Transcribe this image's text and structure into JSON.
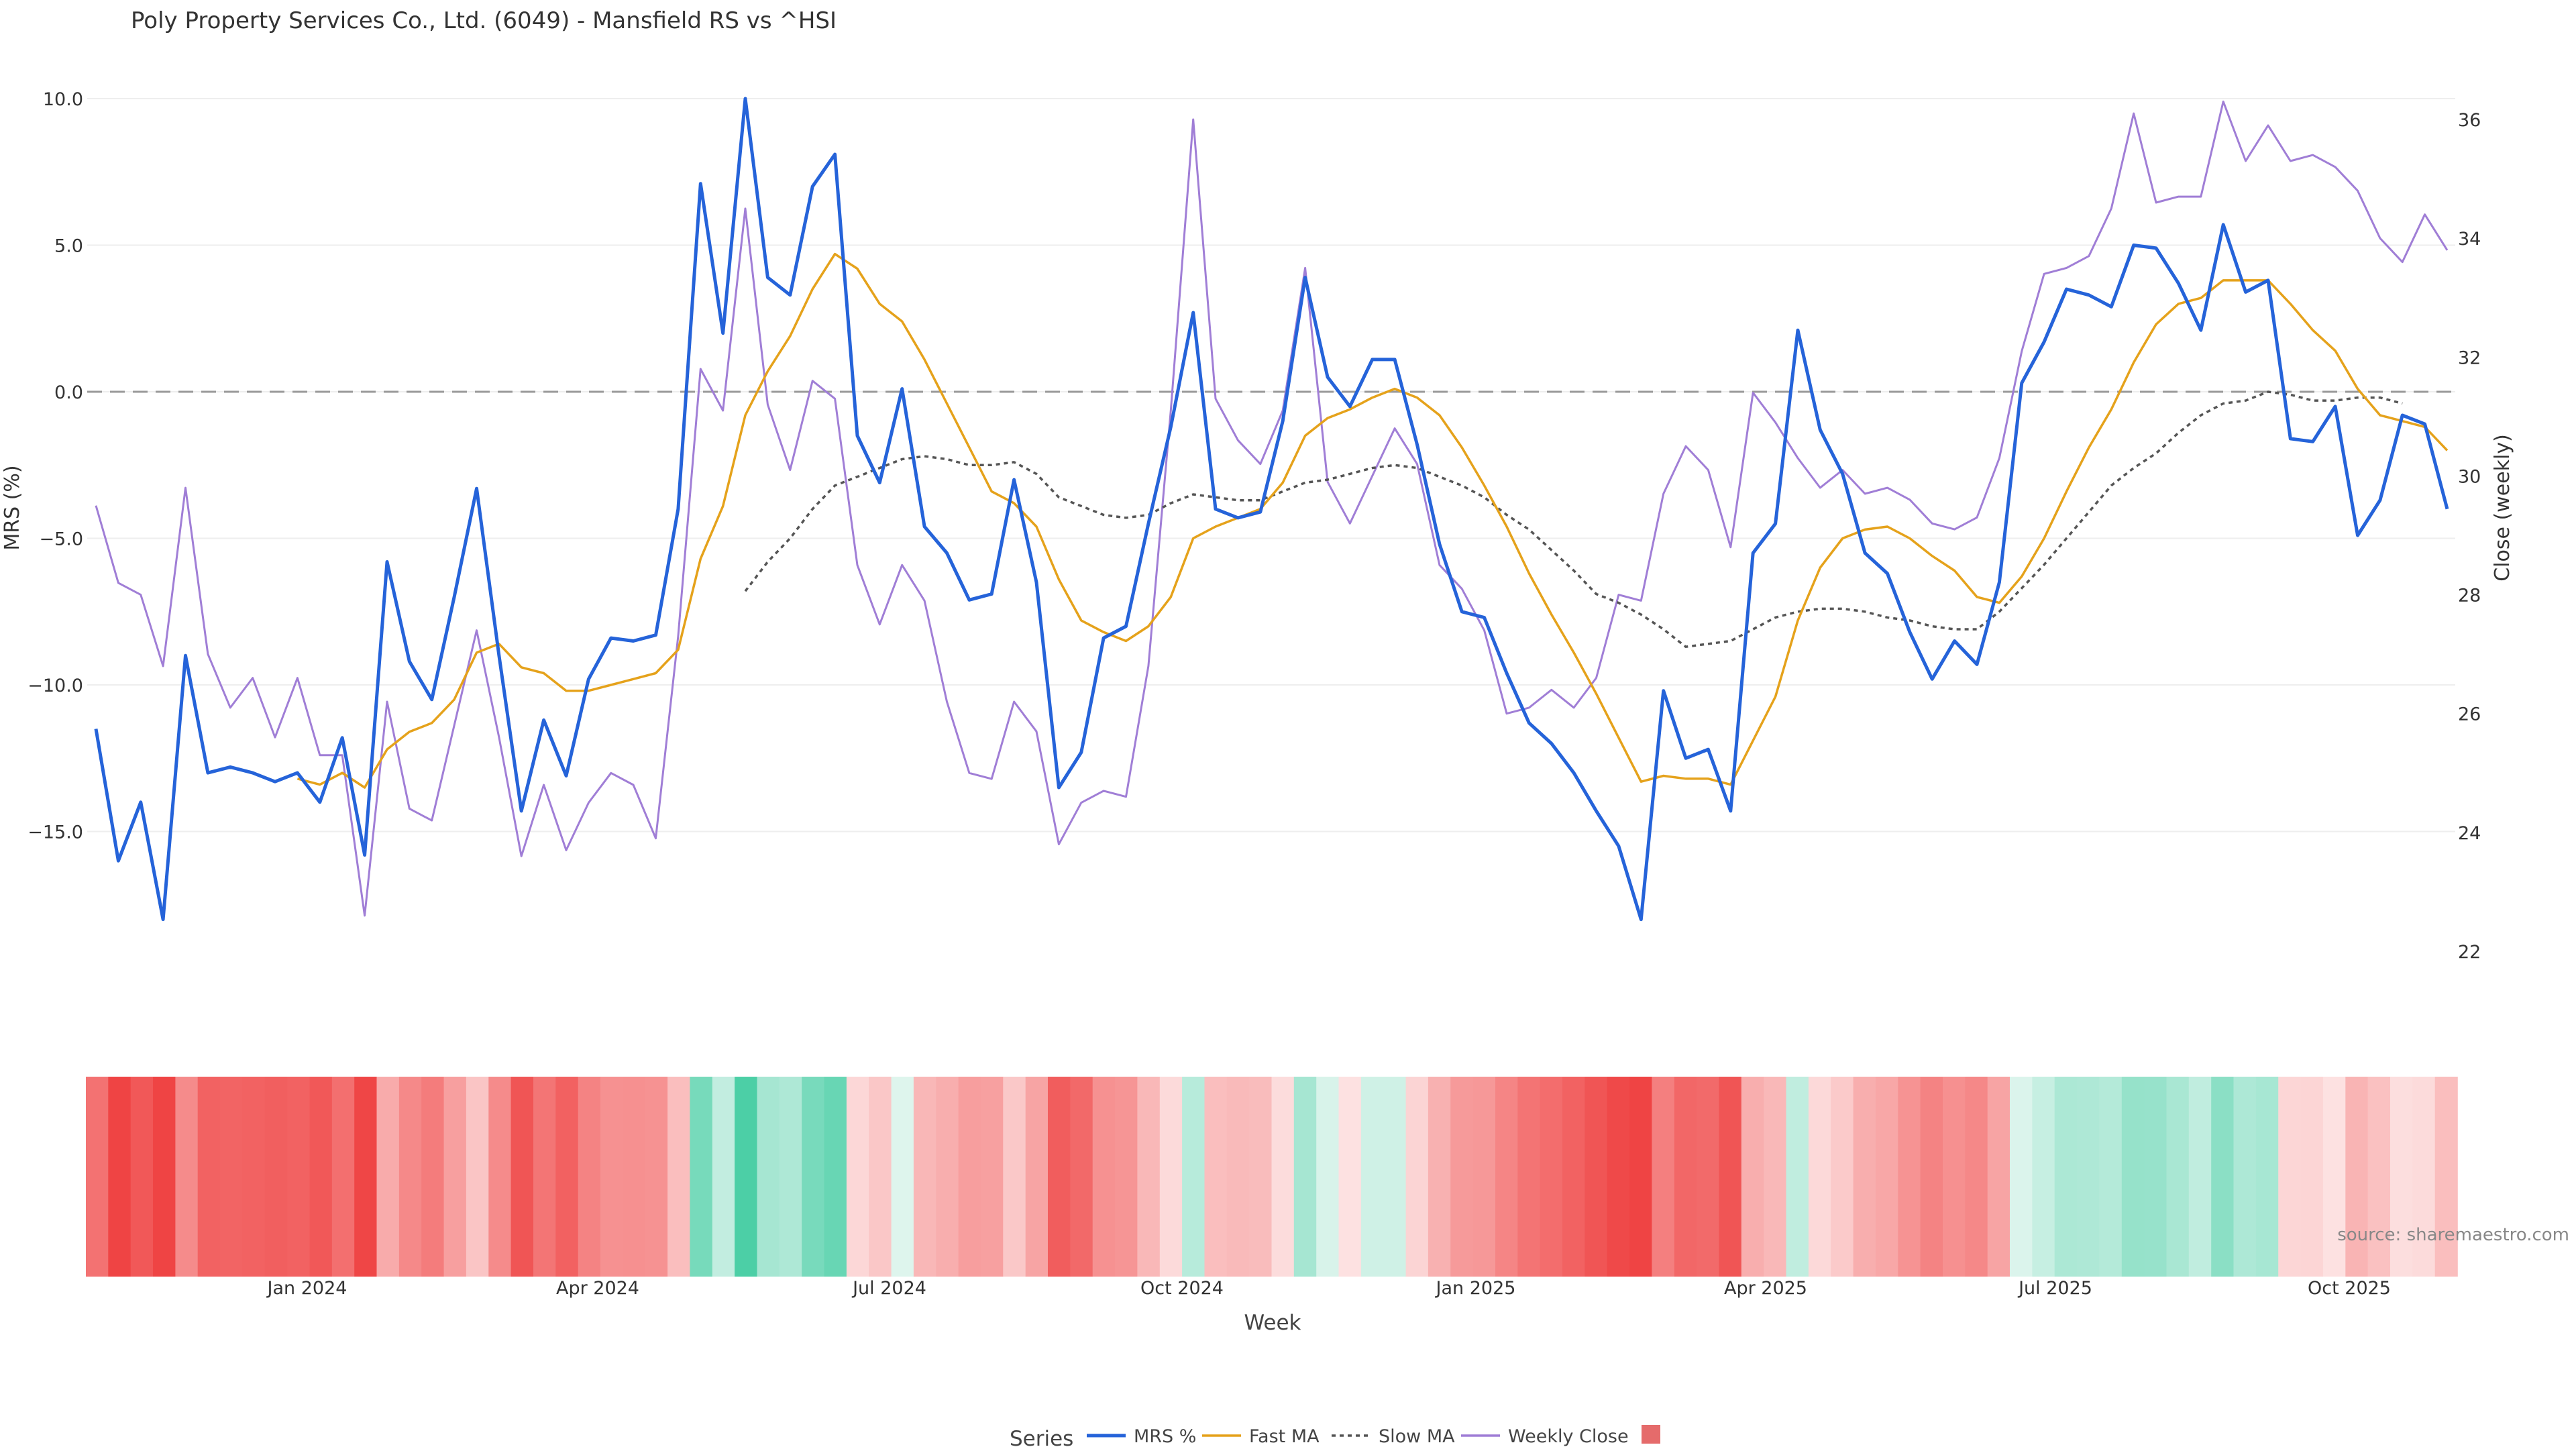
{
  "chart_data": {
    "type": "line",
    "title": "Poly Property Services Co., Ltd. (6049) - Mansfield RS vs ^HSI",
    "xlabel": "Week",
    "ylabel_left": "MRS (%)",
    "ylabel_right": "Close (weekly)",
    "x_ticks": [
      "Jan 2024",
      "Apr 2024",
      "Jul 2024",
      "Oct 2024",
      "Jan 2025",
      "Apr 2025",
      "Jul 2025",
      "Oct 2025"
    ],
    "y_left_ticks": [
      "10.0",
      "5.0",
      "0.0",
      "−5.0",
      "−10.0",
      "−15.0"
    ],
    "y_left_range": [
      -20,
      10
    ],
    "y_right_ticks": [
      "36",
      "34",
      "32",
      "30",
      "28",
      "26",
      "24",
      "22"
    ],
    "y_right_range": [
      21.5,
      36.5
    ],
    "zero_line": 0,
    "series": [
      {
        "name": "MRS %",
        "axis": "left",
        "color": "#2563d9",
        "dash": "solid",
        "values": [
          -11.5,
          -16,
          -14,
          -18,
          -9,
          -13,
          -12.8,
          -13,
          -13.3,
          -13,
          -14,
          -11.8,
          -15.8,
          -5.8,
          -9.2,
          -10.5,
          -7,
          -3.3,
          -9,
          -14.3,
          -11.2,
          -13.1,
          -9.8,
          -8.4,
          -8.5,
          -8.3,
          -4,
          7.1,
          2,
          10,
          3.9,
          3.3,
          7,
          8.1,
          -1.5,
          -3.1,
          0.1,
          -4.6,
          -5.5,
          -7.1,
          -6.9,
          -3,
          -6.5,
          -13.5,
          -12.3,
          -8.4,
          -8,
          -4.5,
          -1.2,
          2.7,
          -4,
          -4.3,
          -4.1,
          -1,
          3.9,
          0.5,
          -0.5,
          1.1,
          1.1,
          -1.8,
          -5.2,
          -7.5,
          -7.7,
          -9.6,
          -11.3,
          -12,
          -13,
          -14.3,
          -15.5,
          -18,
          -10.2,
          -12.5,
          -12.2,
          -14.3,
          -5.5,
          -4.5,
          2.1,
          -1.3,
          -2.8,
          -5.5,
          -6.2,
          -8.2,
          -9.8,
          -8.5,
          -9.3,
          -6.5,
          0.3,
          1.7,
          3.5,
          3.3,
          2.9,
          5,
          4.9,
          3.7,
          2.1,
          5.7,
          3.4,
          3.8,
          -1.6,
          -1.7,
          -0.5,
          -4.9,
          -3.7,
          -0.8,
          -1.1,
          -4
        ]
      },
      {
        "name": "Fast MA",
        "axis": "left",
        "color": "#e5a21b",
        "dash": "solid",
        "values": [
          null,
          null,
          null,
          null,
          null,
          null,
          null,
          null,
          null,
          -13.2,
          -13.4,
          -13,
          -13.5,
          -12.2,
          -11.6,
          -11.3,
          -10.5,
          -8.9,
          -8.6,
          -9.4,
          -9.6,
          -10.2,
          -10.2,
          -10,
          -9.8,
          -9.6,
          -8.8,
          -5.7,
          -3.9,
          -0.8,
          0.7,
          1.9,
          3.5,
          4.7,
          4.2,
          3,
          2.4,
          1.1,
          -0.4,
          -1.9,
          -3.4,
          -3.8,
          -4.6,
          -6.4,
          -7.8,
          -8.2,
          -8.5,
          -8,
          -7,
          -5,
          -4.6,
          -4.3,
          -4,
          -3.1,
          -1.5,
          -0.9,
          -0.6,
          -0.2,
          0.1,
          -0.2,
          -0.8,
          -1.9,
          -3.2,
          -4.6,
          -6.2,
          -7.6,
          -8.9,
          -10.3,
          -11.8,
          -13.3,
          -13.1,
          -13.2,
          -13.2,
          -13.4,
          -11.9,
          -10.4,
          -7.8,
          -6,
          -5,
          -4.7,
          -4.6,
          -5,
          -5.6,
          -6.1,
          -7,
          -7.2,
          -6.3,
          -5,
          -3.4,
          -1.9,
          -0.6,
          1,
          2.3,
          3,
          3.2,
          3.8,
          3.8,
          3.8,
          3,
          2.1,
          1.4,
          0.1,
          -0.8,
          -1,
          -1.2,
          -2
        ]
      },
      {
        "name": "Slow MA",
        "axis": "left",
        "color": "#555555",
        "dash": "dotted",
        "values": [
          null,
          null,
          null,
          null,
          null,
          null,
          null,
          null,
          null,
          null,
          null,
          null,
          null,
          null,
          null,
          null,
          null,
          null,
          null,
          null,
          null,
          null,
          null,
          null,
          null,
          null,
          null,
          null,
          null,
          -6.8,
          -5.8,
          -5,
          -4,
          -3.2,
          -2.9,
          -2.6,
          -2.3,
          -2.2,
          -2.3,
          -2.5,
          -2.5,
          -2.4,
          -2.8,
          -3.6,
          -3.9,
          -4.2,
          -4.3,
          -4.2,
          -3.8,
          -3.5,
          -3.6,
          -3.7,
          -3.7,
          -3.4,
          -3.1,
          -3,
          -2.8,
          -2.6,
          -2.5,
          -2.6,
          -2.9,
          -3.2,
          -3.6,
          -4.2,
          -4.7,
          -5.4,
          -6.1,
          -6.9,
          -7.2,
          -7.6,
          -8.1,
          -8.7,
          -8.6,
          -8.5,
          -8.1,
          -7.7,
          -7.5,
          -7.4,
          -7.4,
          -7.5,
          -7.7,
          -7.8,
          -8,
          -8.1,
          -8.1,
          -7.5,
          -6.7,
          -5.9,
          -5,
          -4.1,
          -3.2,
          -2.6,
          -2.1,
          -1.4,
          -0.8,
          -0.4,
          -0.3,
          0,
          -0.1,
          -0.3,
          -0.3,
          -0.2,
          -0.2,
          -0.4
        ]
      },
      {
        "name": "Weekly Close",
        "axis": "right",
        "color": "#a07ed6",
        "dash": "solid",
        "values": [
          29.5,
          28.2,
          28,
          26.8,
          29.8,
          27,
          26.1,
          26.6,
          25.6,
          26.6,
          25.3,
          25.3,
          22.6,
          26.2,
          24.4,
          24.2,
          25.8,
          27.4,
          25.6,
          23.6,
          24.8,
          23.7,
          24.5,
          25,
          24.8,
          23.9,
          27.3,
          31.8,
          31.1,
          34.5,
          31.2,
          30.1,
          31.6,
          31.3,
          28.5,
          27.5,
          28.5,
          27.9,
          26.2,
          25,
          24.9,
          26.2,
          25.7,
          23.8,
          24.5,
          24.7,
          24.6,
          26.8,
          31.1,
          36,
          31.3,
          30.6,
          30.2,
          31.1,
          33.5,
          29.9,
          29.2,
          30,
          30.8,
          30.2,
          28.5,
          28.1,
          27.4,
          26,
          26.1,
          26.4,
          26.1,
          26.6,
          28,
          27.9,
          29.7,
          30.5,
          30.1,
          28.8,
          31.4,
          30.9,
          30.3,
          29.8,
          30.1,
          29.7,
          29.8,
          29.6,
          29.2,
          29.1,
          29.3,
          30.3,
          32.1,
          33.4,
          33.5,
          33.7,
          34.5,
          36.1,
          34.6,
          34.7,
          34.7,
          36.3,
          35.3,
          35.9,
          35.3,
          35.4,
          35.2,
          34.8,
          34,
          33.6,
          34.4,
          33.8
        ]
      }
    ],
    "heatmap_strip": {
      "description": "weekly MRS color band",
      "values": [
        -11.5,
        -16,
        -14,
        -18,
        -9,
        -13,
        -12.8,
        -13,
        -13.3,
        -13,
        -14,
        -11.8,
        -15.8,
        -5.8,
        -9.2,
        -10.5,
        -7,
        -3.3,
        -9,
        -14.3,
        -11.2,
        -13.1,
        -9.8,
        -8.4,
        -8.5,
        -8.3,
        -4,
        7.1,
        2,
        10,
        3.9,
        3.3,
        7,
        8.1,
        -1.5,
        -3.1,
        0.1,
        -4.6,
        -5.5,
        -7.1,
        -6.9,
        -3,
        -6.5,
        -13.5,
        -12.3,
        -8.4,
        -8,
        -4.5,
        -1.2,
        2.7,
        -4,
        -4.3,
        -4.1,
        -1,
        3.9,
        0.5,
        -0.5,
        1.1,
        1.1,
        -1.8,
        -5.2,
        -7.5,
        -7.7,
        -9.6,
        -11.3,
        -12,
        -13,
        -14.3,
        -15.5,
        -18,
        -10.2,
        -12.5,
        -12.2,
        -14.3,
        -5.5,
        -4.5,
        2.1,
        -1.3,
        -2.8,
        -5.5,
        -6.2,
        -8.2,
        -9.8,
        -8.5,
        -9.3,
        -6.5,
        0.3,
        1.7,
        3.5,
        3.3,
        2.9,
        5,
        4.9,
        3.7,
        2.1,
        5.7,
        3.4,
        3.8,
        -1.6,
        -1.7,
        -0.5,
        -4.9,
        -3.7,
        -0.8,
        -1.1,
        -4
      ]
    },
    "legend": {
      "title": "Series",
      "placement": "bottom-center",
      "items": [
        "MRS %",
        "Fast MA",
        "Slow MA",
        "Weekly Close",
        ""
      ]
    },
    "source": "source: sharemaestro.com",
    "colors": {
      "negative": "#ef4444",
      "positive": "#4ccfa6",
      "marker": "#e56b6b"
    }
  }
}
